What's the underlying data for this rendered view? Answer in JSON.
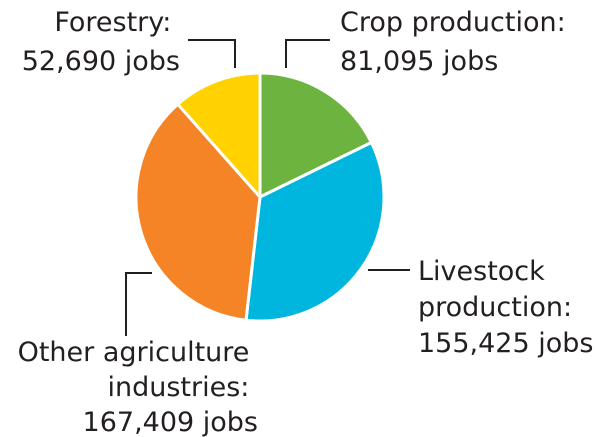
{
  "chart_data": {
    "type": "pie",
    "title": "",
    "slices": [
      {
        "label": "Crop production",
        "label_lines": [
          "Crop production:",
          "81,095 jobs"
        ],
        "value": 81095,
        "color": "#6db33f"
      },
      {
        "label": "Livestock production",
        "label_lines": [
          "Livestock",
          "production:",
          "155,425 jobs"
        ],
        "value": 155425,
        "color": "#00b6de"
      },
      {
        "label": "Other agriculture industries",
        "label_lines": [
          "Other agriculture",
          "industries:",
          "167,409 jobs"
        ],
        "value": 167409,
        "color": "#f58426"
      },
      {
        "label": "Forestry",
        "label_lines": [
          "Forestry:",
          "52,690 jobs"
        ],
        "value": 52690,
        "color": "#ffd200"
      }
    ]
  }
}
